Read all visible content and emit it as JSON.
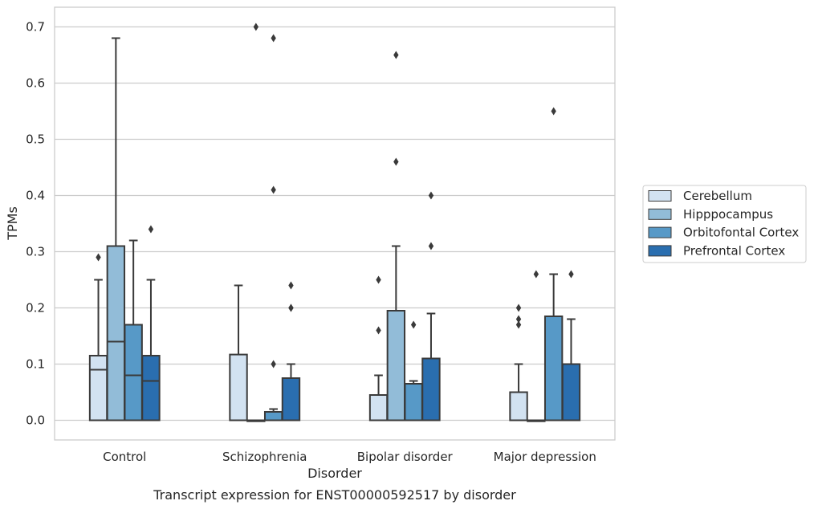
{
  "chart_data": {
    "type": "box",
    "caption": "Transcript expression for ENST00000592517 by disorder",
    "xlabel": "Disorder",
    "ylabel": "TPMs",
    "ylim": [
      -0.035,
      0.735
    ],
    "yticks": [
      "0.0",
      "0.1",
      "0.2",
      "0.3",
      "0.4",
      "0.5",
      "0.6",
      "0.7"
    ],
    "ytick_values": [
      0,
      0.1,
      0.2,
      0.3,
      0.4,
      0.5,
      0.6,
      0.7
    ],
    "grid": "horizontal",
    "legend_position": "right",
    "categories": [
      "Control",
      "Schizophrenia",
      "Bipolar disorder",
      "Major depression"
    ],
    "series": [
      {
        "name": "Cerebellum",
        "color": "#d2e2f1",
        "boxes": [
          {
            "q1": 0,
            "median": 0.09,
            "q3": 0.115,
            "whisker_low": 0,
            "whisker_high": 0.25,
            "outliers": [
              0.29
            ]
          },
          {
            "q1": 0,
            "median": 0,
            "q3": 0.117,
            "whisker_low": 0,
            "whisker_high": 0.24,
            "outliers": []
          },
          {
            "q1": 0,
            "median": 0,
            "q3": 0.045,
            "whisker_low": 0,
            "whisker_high": 0.08,
            "outliers": [
              0.16,
              0.25
            ]
          },
          {
            "q1": 0,
            "median": 0,
            "q3": 0.05,
            "whisker_low": 0,
            "whisker_high": 0.1,
            "outliers": [
              0.17,
              0.18,
              0.2
            ]
          }
        ]
      },
      {
        "name": "Hipppocampus",
        "color": "#92bcd8",
        "boxes": [
          {
            "q1": 0,
            "median": 0.14,
            "q3": 0.31,
            "whisker_low": 0,
            "whisker_high": 0.68,
            "outliers": []
          },
          {
            "q1": 0,
            "median": 0,
            "q3": 0,
            "whisker_low": 0,
            "whisker_high": 0,
            "outliers": [
              0.7
            ]
          },
          {
            "q1": 0,
            "median": 0,
            "q3": 0.195,
            "whisker_low": 0,
            "whisker_high": 0.31,
            "outliers": [
              0.46,
              0.65
            ]
          },
          {
            "q1": 0,
            "median": 0,
            "q3": 0,
            "whisker_low": 0,
            "whisker_high": 0,
            "outliers": [
              0.26
            ]
          }
        ]
      },
      {
        "name": "Orbitofontal Cortex",
        "color": "#5799c7",
        "boxes": [
          {
            "q1": 0,
            "median": 0.08,
            "q3": 0.17,
            "whisker_low": 0,
            "whisker_high": 0.32,
            "outliers": []
          },
          {
            "q1": 0,
            "median": 0,
            "q3": 0.015,
            "whisker_low": 0,
            "whisker_high": 0.02,
            "outliers": [
              0.1,
              0.41,
              0.68
            ]
          },
          {
            "q1": 0,
            "median": 0,
            "q3": 0.065,
            "whisker_low": 0,
            "whisker_high": 0.07,
            "outliers": [
              0.17
            ]
          },
          {
            "q1": 0,
            "median": 0,
            "q3": 0.185,
            "whisker_low": 0,
            "whisker_high": 0.26,
            "outliers": [
              0.55
            ]
          }
        ]
      },
      {
        "name": "Prefrontal Cortex",
        "color": "#2a6eaf",
        "boxes": [
          {
            "q1": 0,
            "median": 0.07,
            "q3": 0.115,
            "whisker_low": 0,
            "whisker_high": 0.25,
            "outliers": [
              0.34
            ]
          },
          {
            "q1": 0,
            "median": 0,
            "q3": 0.075,
            "whisker_low": 0,
            "whisker_high": 0.1,
            "outliers": [
              0.2,
              0.2,
              0.24
            ]
          },
          {
            "q1": 0,
            "median": 0,
            "q3": 0.11,
            "whisker_low": 0,
            "whisker_high": 0.19,
            "outliers": [
              0.31,
              0.4
            ]
          },
          {
            "q1": 0,
            "median": 0,
            "q3": 0.1,
            "whisker_low": 0,
            "whisker_high": 0.18,
            "outliers": [
              0.26
            ]
          }
        ]
      }
    ]
  }
}
